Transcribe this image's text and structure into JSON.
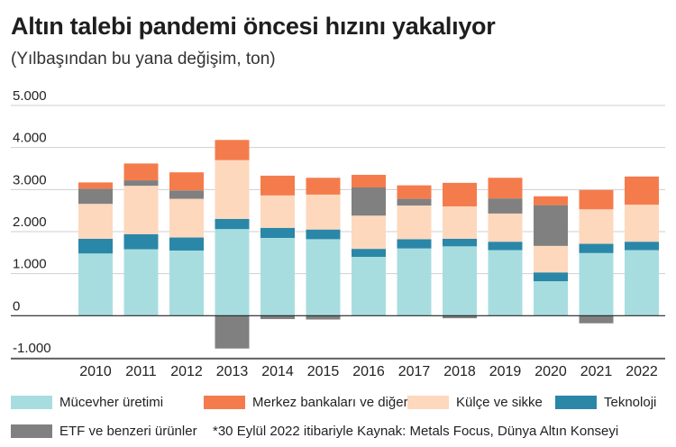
{
  "title": "Altın talebi pandemi öncesi hızını yakalıyor",
  "subtitle": "(Yılbaşından bu yana değişim, ton)",
  "footnote": "*30 Eylül 2022 itibariyle  Kaynak: Metals Focus, Dünya Altın Konseyi",
  "colors": {
    "jewelry": "#a8dde0",
    "technology": "#2a87a8",
    "bars_coins": "#fdd8bd",
    "etf": "#808080",
    "central_banks": "#f47c4c",
    "grid": "#cfcfcf",
    "axis": "#222222"
  },
  "chart_data": {
    "type": "bar",
    "stacked": true,
    "categories": [
      "2010",
      "2011",
      "2012",
      "2013",
      "2014",
      "2015",
      "2016",
      "2017",
      "2018",
      "2019",
      "2020",
      "2021",
      "2022"
    ],
    "series": [
      {
        "key": "jewelry",
        "name": "Mücevher üretimi",
        "values": [
          1480,
          1580,
          1550,
          2060,
          1850,
          1820,
          1400,
          1600,
          1650,
          1560,
          820,
          1490,
          1560
        ]
      },
      {
        "key": "technology",
        "name": "Teknoloji",
        "values": [
          350,
          360,
          310,
          240,
          240,
          230,
          190,
          220,
          180,
          200,
          210,
          220,
          200
        ]
      },
      {
        "key": "bars_coins",
        "name": "Külçe ve sikke",
        "values": [
          830,
          1150,
          920,
          1400,
          770,
          830,
          790,
          800,
          770,
          670,
          630,
          820,
          880
        ]
      },
      {
        "key": "etf",
        "name": "ETF ve benzeri ürünler",
        "values": [
          360,
          130,
          200,
          -780,
          -80,
          -90,
          670,
          160,
          -60,
          360,
          970,
          -180,
          0
        ]
      },
      {
        "key": "central_banks",
        "name": "Merkez bankaları ve diğer",
        "values": [
          150,
          400,
          430,
          480,
          470,
          400,
          300,
          320,
          560,
          490,
          210,
          460,
          670
        ]
      }
    ],
    "y_ticks": [
      "5.000",
      "4.000",
      "3.000",
      "2.000",
      "1.000",
      "0",
      "-1.000"
    ],
    "ylim": [
      -1000,
      5000
    ],
    "grid": true,
    "legend_position": "bottom"
  },
  "legend": [
    {
      "key": "jewelry",
      "label": "Mücevher üretimi"
    },
    {
      "key": "central_banks",
      "label": "Merkez bankaları ve diğer"
    },
    {
      "key": "bars_coins",
      "label": "Külçe ve sikke"
    },
    {
      "key": "technology",
      "label": "Teknoloji"
    },
    {
      "key": "etf",
      "label": "ETF ve benzeri ürünler"
    }
  ]
}
